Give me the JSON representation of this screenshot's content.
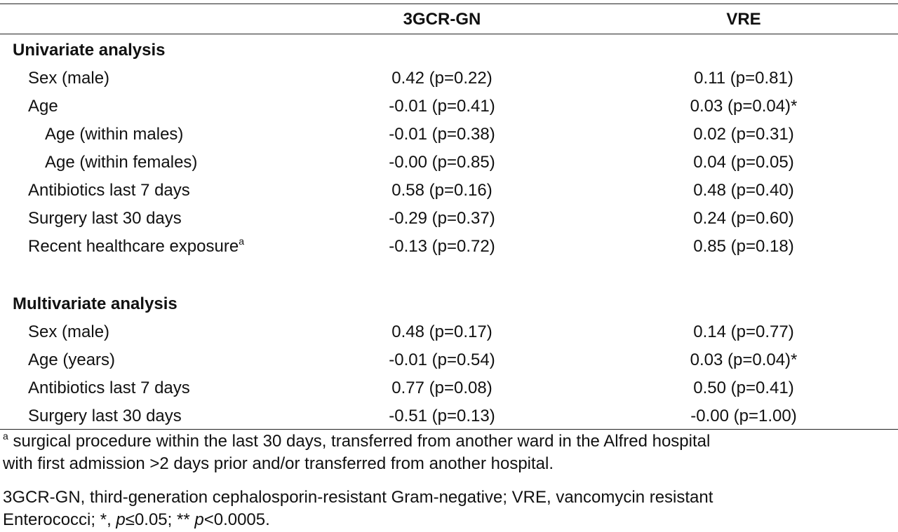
{
  "header": {
    "col1": "3GCR-GN",
    "col2": "VRE"
  },
  "univariate": {
    "title": "Univariate analysis",
    "rows": [
      {
        "label": "Sex (male)",
        "gn": "0.42 (p=0.22)",
        "vre": "0.11 (p=0.81)"
      },
      {
        "label": "Age",
        "gn": "-0.01 (p=0.41)",
        "vre": "0.03 (p=0.04)*"
      },
      {
        "label": "Age (within males)",
        "gn": "-0.01 (p=0.38)",
        "vre": "0.02 (p=0.31)"
      },
      {
        "label": "Age (within females)",
        "gn": "-0.00 (p=0.85)",
        "vre": "0.04 (p=0.05)"
      },
      {
        "label": "Antibiotics last 7 days",
        "gn": "0.58 (p=0.16)",
        "vre": "0.48 (p=0.40)"
      },
      {
        "label": "Surgery last 30 days",
        "gn": "-0.29 (p=0.37)",
        "vre": "0.24 (p=0.60)"
      },
      {
        "label": "Recent healthcare exposure",
        "sup": "a",
        "gn": "-0.13 (p=0.72)",
        "vre": "0.85 (p=0.18)"
      }
    ]
  },
  "multivariate": {
    "title": "Multivariate analysis",
    "rows": [
      {
        "label": "Sex (male)",
        "gn": "0.48 (p=0.17)",
        "vre": "0.14 (p=0.77)"
      },
      {
        "label": "Age (years)",
        "gn": "-0.01 (p=0.54)",
        "vre": "0.03 (p=0.04)*"
      },
      {
        "label": "Antibiotics last 7 days",
        "gn": "0.77 (p=0.08)",
        "vre": "0.50 (p=0.41)"
      },
      {
        "label": "Surgery last 30 days",
        "gn": "-0.51 (p=0.13)",
        "vre": "-0.00 (p=1.00)"
      }
    ]
  },
  "footnotes": {
    "a_marker": "a",
    "a_text_line1": " surgical procedure within the last 30 days, transferred from another ward in the Alfred hospital",
    "a_text_line2": "with first admission >2 days prior and/or transferred from another hospital.",
    "abbrev_line1": "3GCR-GN, third-generation cephalosporin-resistant Gram-negative; VRE, vancomycin resistant",
    "abbrev_line2_a": "Enterococci; *, ",
    "abbrev_p1": "p",
    "abbrev_line2_b": "≤0.05; ** ",
    "abbrev_p2": "p",
    "abbrev_line2_c": "<0.0005."
  }
}
